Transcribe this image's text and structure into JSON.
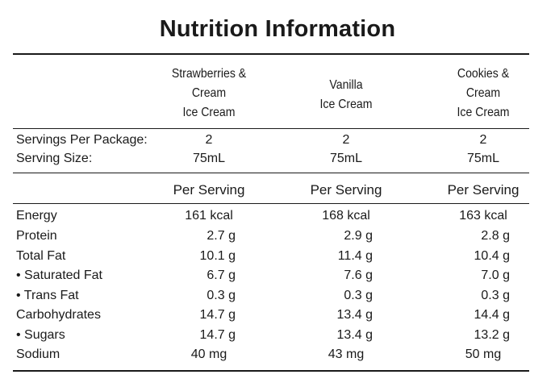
{
  "title": "Nutrition Information",
  "products": [
    {
      "name_lines": [
        "Strawberries &",
        "Cream",
        "Ice Cream"
      ]
    },
    {
      "name_lines": [
        "Vanilla",
        "Ice Cream"
      ]
    },
    {
      "name_lines": [
        "Cookies &",
        "Cream",
        "Ice Cream"
      ]
    }
  ],
  "servings_per_package": {
    "label": "Servings Per Package:",
    "values": [
      "2",
      "2",
      "2"
    ]
  },
  "serving_size": {
    "label": "Serving Size:",
    "values": [
      "75mL",
      "75mL",
      "75mL"
    ]
  },
  "per_serving_headers": [
    "Per Serving",
    "Per Serving",
    "Per Serving"
  ],
  "nutrients": [
    {
      "label": "Energy",
      "values": [
        "161 kcal",
        "168 kcal",
        "163 kcal"
      ]
    },
    {
      "label": "Protein",
      "values": [
        "2.7 g",
        "2.9 g",
        "2.8 g"
      ]
    },
    {
      "label": "Total Fat",
      "values": [
        "10.1 g",
        "11.4 g",
        "10.4 g"
      ]
    },
    {
      "label": "• Saturated Fat",
      "values": [
        "6.7 g",
        "7.6 g",
        "7.0 g"
      ]
    },
    {
      "label": "• Trans Fat",
      "values": [
        "0.3 g",
        "0.3 g",
        "0.3 g"
      ]
    },
    {
      "label": "Carbohydrates",
      "values": [
        "14.7 g",
        "13.4 g",
        "14.4 g"
      ]
    },
    {
      "label": "• Sugars",
      "values": [
        "14.7 g",
        "13.4 g",
        "13.2 g"
      ]
    },
    {
      "label": "Sodium",
      "values": [
        "40 mg",
        "43 mg",
        "50 mg"
      ]
    }
  ]
}
